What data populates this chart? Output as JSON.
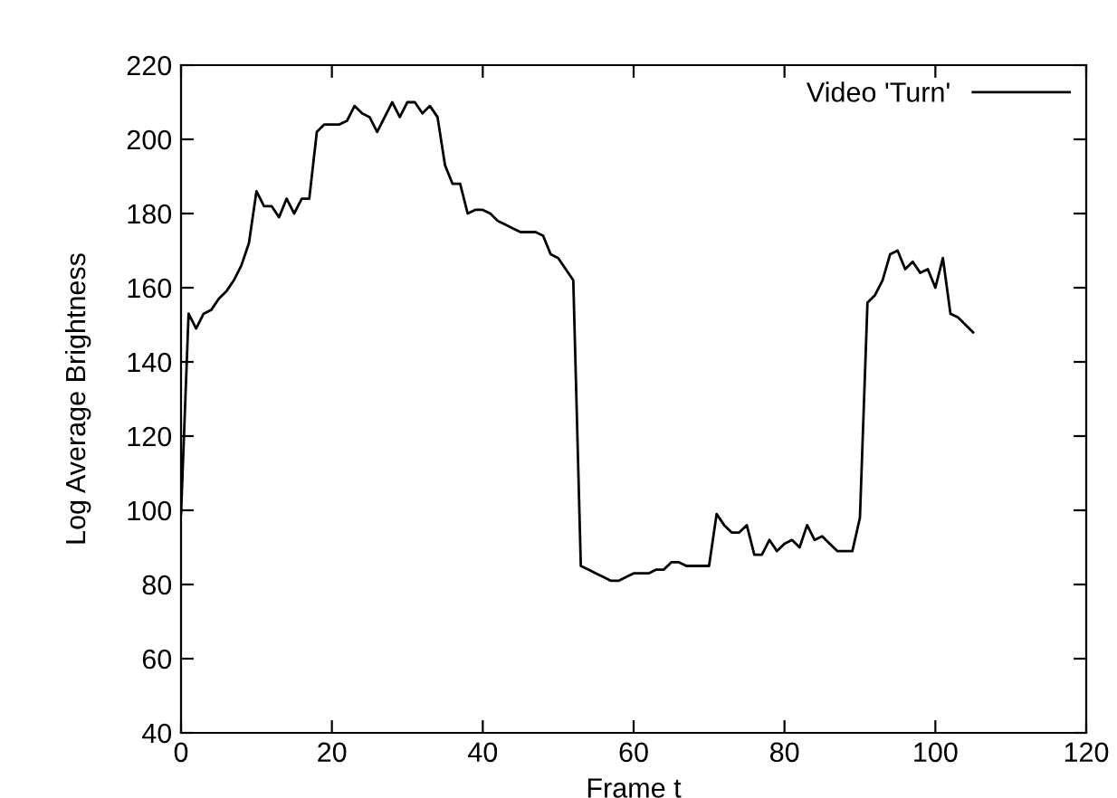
{
  "chart_data": {
    "type": "line",
    "xlabel": "Frame t",
    "ylabel": "Log Average Brightness",
    "xlim": [
      0,
      120
    ],
    "ylim": [
      40,
      220
    ],
    "xticks": [
      0,
      20,
      40,
      60,
      80,
      100,
      120
    ],
    "yticks": [
      40,
      60,
      80,
      100,
      120,
      140,
      160,
      180,
      200,
      220
    ],
    "grid": false,
    "legend": "top right",
    "marker": "none",
    "line_style": "solid",
    "x": [
      0,
      1,
      2,
      3,
      4,
      5,
      6,
      7,
      8,
      9,
      10,
      11,
      12,
      13,
      14,
      15,
      16,
      17,
      18,
      19,
      20,
      21,
      22,
      23,
      24,
      25,
      26,
      27,
      28,
      29,
      30,
      31,
      32,
      33,
      34,
      35,
      36,
      37,
      38,
      39,
      40,
      41,
      42,
      43,
      44,
      45,
      46,
      47,
      48,
      49,
      50,
      51,
      52,
      53,
      54,
      55,
      56,
      57,
      58,
      59,
      60,
      61,
      62,
      63,
      64,
      65,
      66,
      67,
      68,
      69,
      70,
      71,
      72,
      73,
      74,
      75,
      76,
      77,
      78,
      79,
      80,
      81,
      82,
      83,
      84,
      85,
      86,
      87,
      88,
      89,
      90,
      91,
      92,
      93,
      94,
      95,
      96,
      97,
      98,
      99,
      100,
      101,
      102,
      103,
      104,
      105
    ],
    "series": [
      {
        "name": "Video 'Turn'",
        "color": "#000000",
        "values": [
          99,
          153,
          149,
          153,
          154,
          157,
          159,
          162,
          166,
          172,
          186,
          182,
          182,
          179,
          184,
          180,
          184,
          184,
          202,
          204,
          204,
          204,
          205,
          209,
          207,
          206,
          202,
          206,
          210,
          206,
          210,
          210,
          207,
          209,
          206,
          193,
          188,
          188,
          180,
          181,
          181,
          180,
          178,
          177,
          176,
          175,
          175,
          175,
          174,
          169,
          168,
          165,
          162,
          85,
          84,
          83,
          82,
          81,
          81,
          82,
          83,
          83,
          83,
          84,
          84,
          86,
          86,
          85,
          85,
          85,
          85,
          99,
          96,
          94,
          94,
          96,
          88,
          88,
          92,
          89,
          91,
          92,
          90,
          96,
          92,
          93,
          91,
          89,
          89,
          89,
          98,
          156,
          158,
          162,
          169,
          170,
          165,
          167,
          164,
          165,
          160,
          168,
          153,
          152,
          150,
          148
        ]
      }
    ]
  }
}
